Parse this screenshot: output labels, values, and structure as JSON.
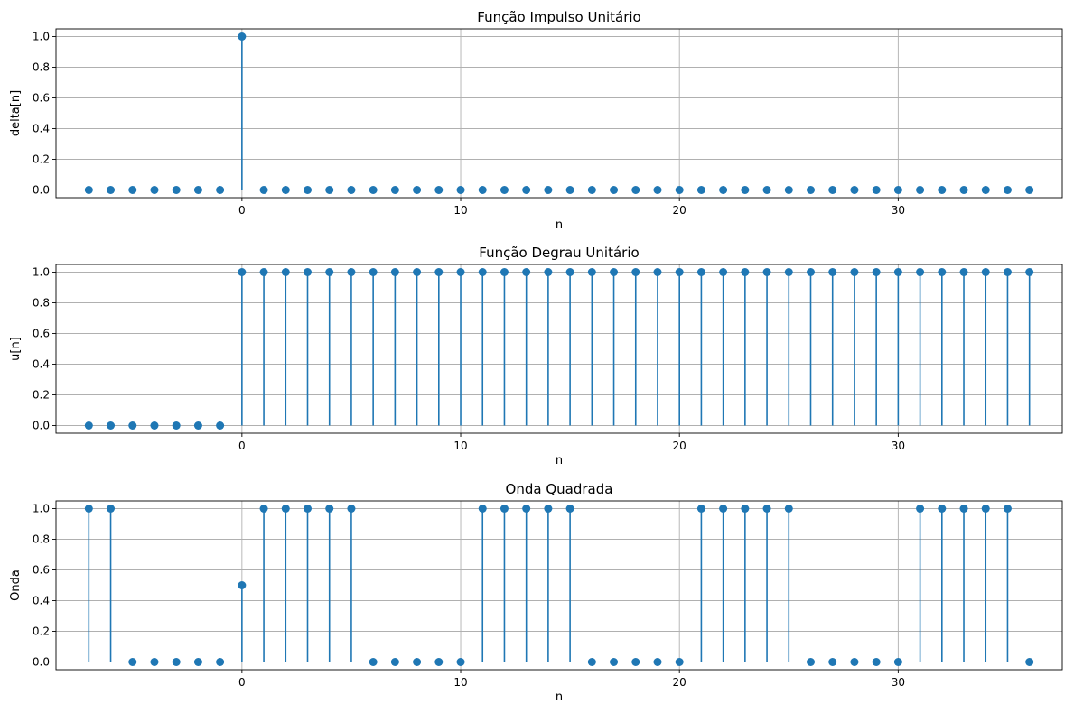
{
  "chart_data": [
    {
      "type": "stem",
      "title": "Função Impulso Unitário",
      "xlabel": "n",
      "ylabel": "delta[n]",
      "color": "#1f77b4",
      "grid": true,
      "xlim": [
        -8.5,
        37.5
      ],
      "ylim": [
        -0.05,
        1.05
      ],
      "xticks": [
        0,
        10,
        20,
        30
      ],
      "yticks": [
        0.0,
        0.2,
        0.4,
        0.6,
        0.8,
        1.0
      ],
      "ytick_labels": [
        "0.0",
        "0.2",
        "0.4",
        "0.6",
        "0.8",
        "1.0"
      ],
      "x": [
        -7,
        -6,
        -5,
        -4,
        -3,
        -2,
        -1,
        0,
        1,
        2,
        3,
        4,
        5,
        6,
        7,
        8,
        9,
        10,
        11,
        12,
        13,
        14,
        15,
        16,
        17,
        18,
        19,
        20,
        21,
        22,
        23,
        24,
        25,
        26,
        27,
        28,
        29,
        30,
        31,
        32,
        33,
        34,
        35,
        36
      ],
      "y": [
        0,
        0,
        0,
        0,
        0,
        0,
        0,
        1,
        0,
        0,
        0,
        0,
        0,
        0,
        0,
        0,
        0,
        0,
        0,
        0,
        0,
        0,
        0,
        0,
        0,
        0,
        0,
        0,
        0,
        0,
        0,
        0,
        0,
        0,
        0,
        0,
        0,
        0,
        0,
        0,
        0,
        0,
        0,
        0
      ]
    },
    {
      "type": "stem",
      "title": "Função Degrau Unitário",
      "xlabel": "n",
      "ylabel": "u[n]",
      "color": "#1f77b4",
      "grid": true,
      "xlim": [
        -8.5,
        37.5
      ],
      "ylim": [
        -0.05,
        1.05
      ],
      "xticks": [
        0,
        10,
        20,
        30
      ],
      "yticks": [
        0.0,
        0.2,
        0.4,
        0.6,
        0.8,
        1.0
      ],
      "ytick_labels": [
        "0.0",
        "0.2",
        "0.4",
        "0.6",
        "0.8",
        "1.0"
      ],
      "x": [
        -7,
        -6,
        -5,
        -4,
        -3,
        -2,
        -1,
        0,
        1,
        2,
        3,
        4,
        5,
        6,
        7,
        8,
        9,
        10,
        11,
        12,
        13,
        14,
        15,
        16,
        17,
        18,
        19,
        20,
        21,
        22,
        23,
        24,
        25,
        26,
        27,
        28,
        29,
        30,
        31,
        32,
        33,
        34,
        35,
        36
      ],
      "y": [
        0,
        0,
        0,
        0,
        0,
        0,
        0,
        1,
        1,
        1,
        1,
        1,
        1,
        1,
        1,
        1,
        1,
        1,
        1,
        1,
        1,
        1,
        1,
        1,
        1,
        1,
        1,
        1,
        1,
        1,
        1,
        1,
        1,
        1,
        1,
        1,
        1,
        1,
        1,
        1,
        1,
        1,
        1,
        1
      ]
    },
    {
      "type": "stem",
      "title": "Onda Quadrada",
      "xlabel": "n",
      "ylabel": "Onda",
      "color": "#1f77b4",
      "grid": true,
      "xlim": [
        -8.5,
        37.5
      ],
      "ylim": [
        -0.05,
        1.05
      ],
      "xticks": [
        0,
        10,
        20,
        30
      ],
      "yticks": [
        0.0,
        0.2,
        0.4,
        0.6,
        0.8,
        1.0
      ],
      "ytick_labels": [
        "0.0",
        "0.2",
        "0.4",
        "0.6",
        "0.8",
        "1.0"
      ],
      "x": [
        -7,
        -6,
        -5,
        -4,
        -3,
        -2,
        -1,
        0,
        1,
        2,
        3,
        4,
        5,
        6,
        7,
        8,
        9,
        10,
        11,
        12,
        13,
        14,
        15,
        16,
        17,
        18,
        19,
        20,
        21,
        22,
        23,
        24,
        25,
        26,
        27,
        28,
        29,
        30,
        31,
        32,
        33,
        34,
        35,
        36
      ],
      "y": [
        1,
        1,
        0,
        0,
        0,
        0,
        0,
        0.5,
        1,
        1,
        1,
        1,
        1,
        0,
        0,
        0,
        0,
        0,
        1,
        1,
        1,
        1,
        1,
        0,
        0,
        0,
        0,
        0,
        1,
        1,
        1,
        1,
        1,
        0,
        0,
        0,
        0,
        0,
        1,
        1,
        1,
        1,
        1,
        0
      ]
    }
  ]
}
